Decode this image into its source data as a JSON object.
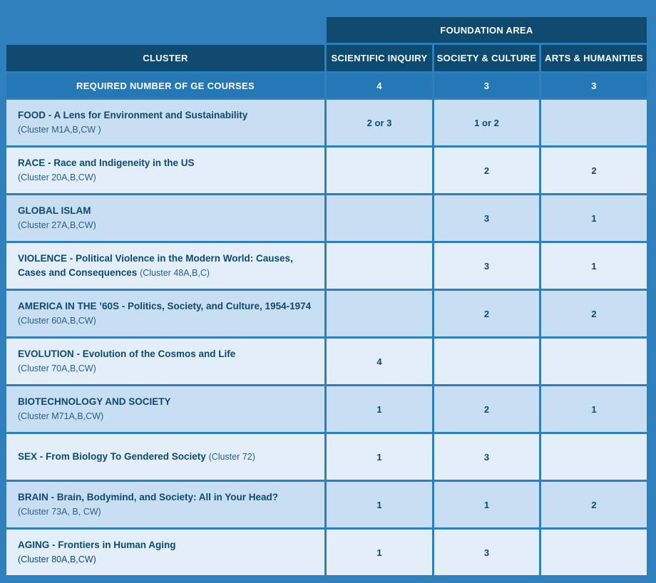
{
  "header": {
    "foundation_area": "FOUNDATION AREA",
    "cluster": "CLUSTER",
    "scientific_inquiry": "SCIENTIFIC INQUIRY",
    "society_culture": "SOCIETY & CULTURE",
    "arts_humanities": "ARTS & HUMANITIES"
  },
  "required": {
    "label": "REQUIRED NUMBER OF GE COURSES",
    "scientific_inquiry": "4",
    "society_culture": "3",
    "arts_humanities": "3"
  },
  "rows": [
    {
      "title": "FOOD - A Lens for Environment and Sustainability",
      "sub": "(Cluster M1A,B,CW )",
      "si": "2 or 3",
      "sc": "1 or 2",
      "ah": ""
    },
    {
      "title": "RACE - Race and Indigeneity in the US",
      "sub": "(Cluster 20A,B,CW)",
      "si": "",
      "sc": "2",
      "ah": "2"
    },
    {
      "title": "GLOBAL ISLAM",
      "sub": "(Cluster 27A,B,CW)",
      "si": "",
      "sc": "3",
      "ah": "1"
    },
    {
      "title": "VIOLENCE - Political Violence in the Modern World: Causes, Cases and Consequences",
      "sub": "(Cluster 48A,B,C)",
      "si": "",
      "sc": "3",
      "ah": "1"
    },
    {
      "title": "AMERICA IN THE ’60S - Politics, Society, and Culture, 1954-1974",
      "sub": "(Cluster 60A,B,CW)",
      "si": "",
      "sc": "2",
      "ah": "2"
    },
    {
      "title": "EVOLUTION - Evolution of the Cosmos and Life",
      "sub": "(Cluster 70A,B,CW)",
      "si": "4",
      "sc": "",
      "ah": ""
    },
    {
      "title": "BIOTECHNOLOGY AND SOCIETY",
      "sub": "(Cluster M71A,B,CW)",
      "si": "1",
      "sc": "2",
      "ah": "1"
    },
    {
      "title": "SEX - From Biology To Gendered Society",
      "sub": "(Cluster 72)",
      "si": "1",
      "sc": "3",
      "ah": ""
    },
    {
      "title": "BRAIN - Brain, Bodymind, and Society: All in Your Head?",
      "sub": "(Cluster 73A, B, CW)",
      "si": "1",
      "sc": "1",
      "ah": "2"
    },
    {
      "title": "AGING - Frontiers in Human Aging",
      "sub": "(Cluster 80A,B,CW)",
      "si": "1",
      "sc": "3",
      "ah": ""
    }
  ]
}
